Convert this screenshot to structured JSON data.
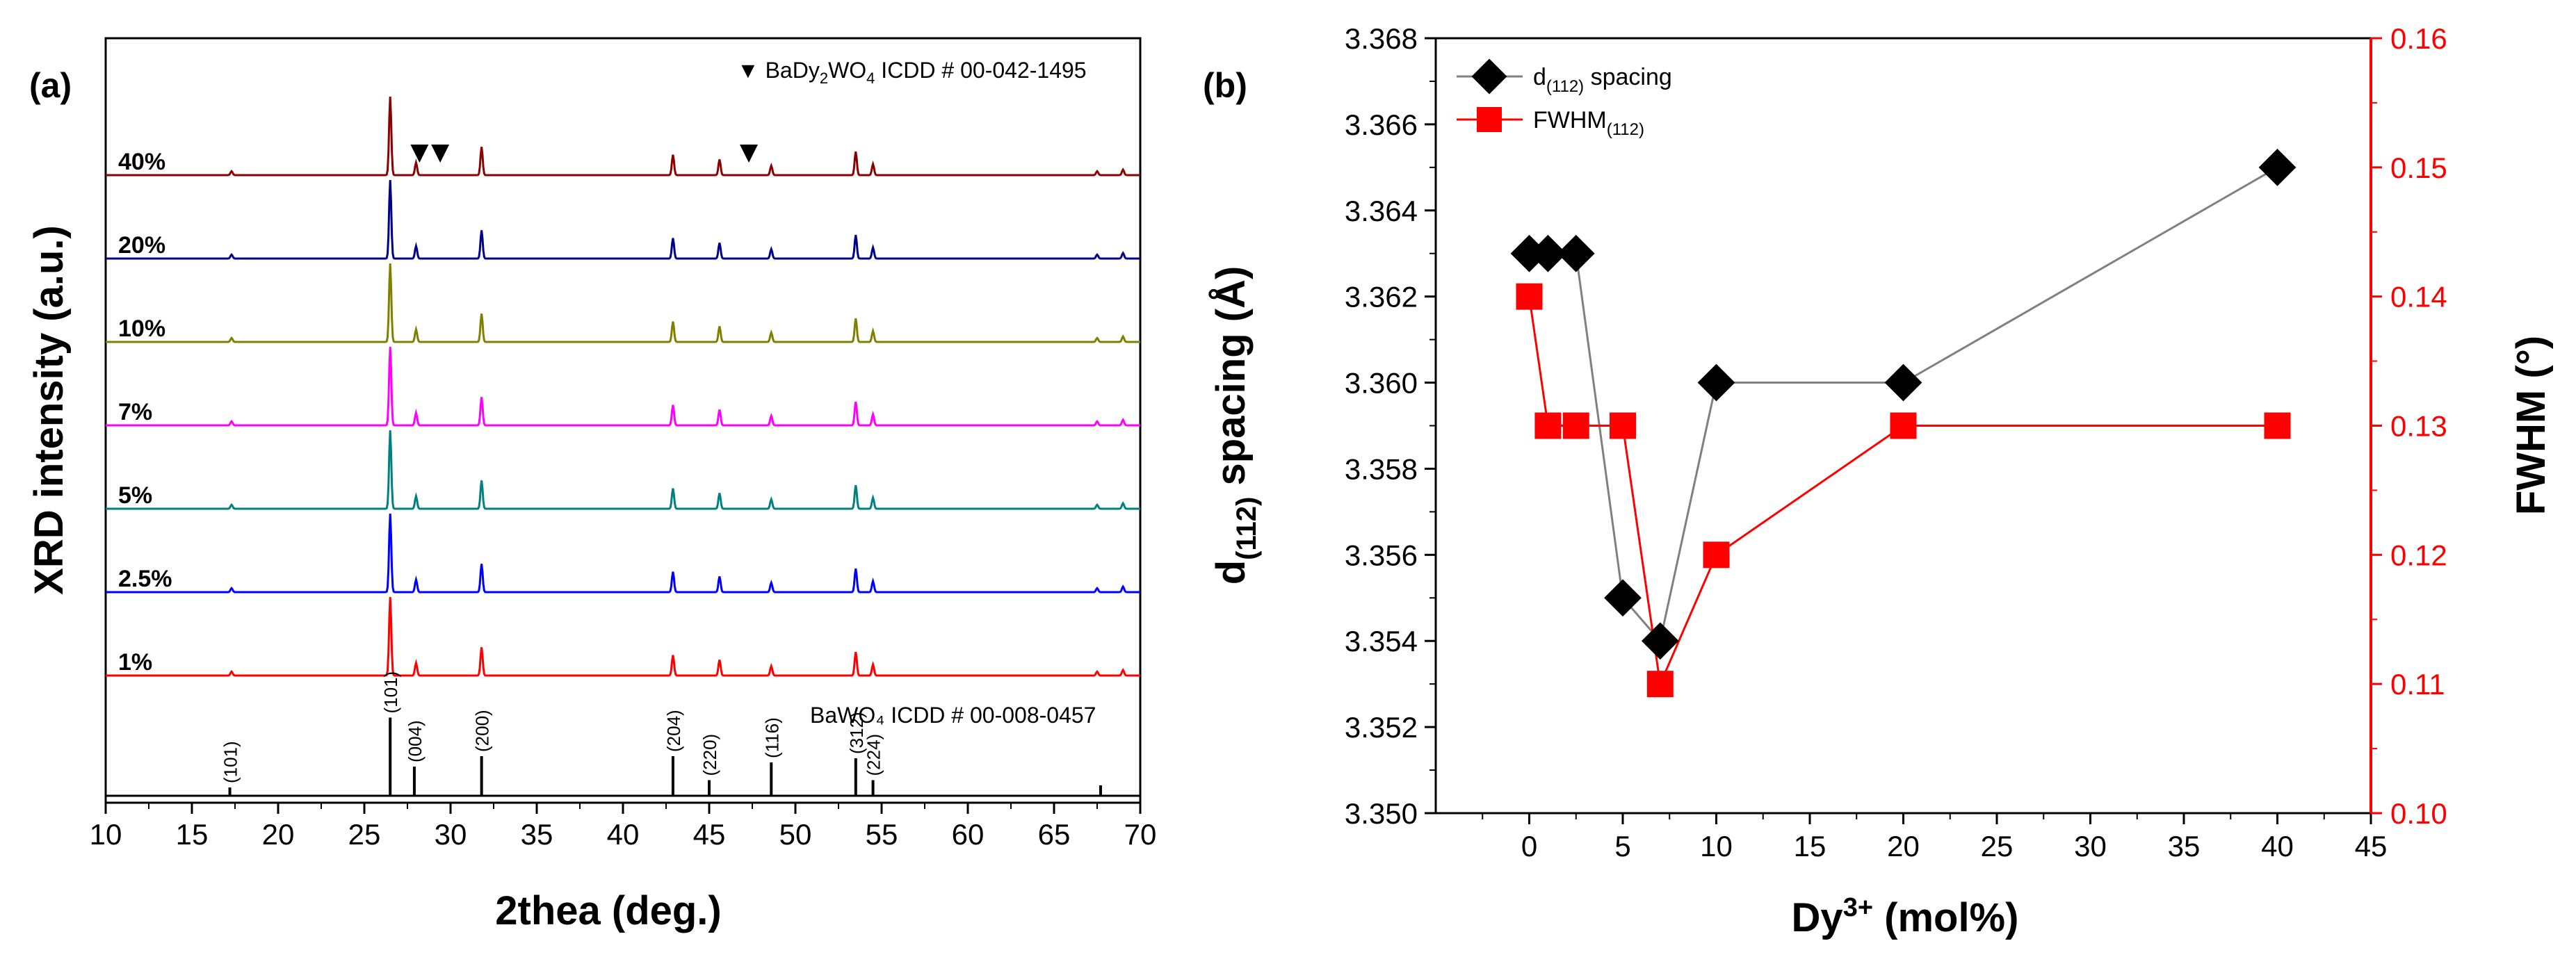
{
  "chart_data": [
    {
      "type": "line",
      "panel": "(a)",
      "title": "",
      "xlabel": "2thea (deg.)",
      "ylabel": "XRD intensity (a.u.)",
      "xlim": [
        10,
        70
      ],
      "xticks": [
        10,
        15,
        20,
        25,
        30,
        35,
        40,
        45,
        50,
        55,
        60,
        65,
        70
      ],
      "marker_legend": {
        "symbol": "▼",
        "pre": "BaDy",
        "sub1": "2",
        "mid": "WO",
        "sub2": "4",
        "post": " ICDD # 00-042-1495"
      },
      "reference_label": "BaWO₄ ICDD # 00-008-0457",
      "secondary_phase_markers": [
        28.2,
        29.4,
        47.3
      ],
      "series": [
        {
          "name": "40%",
          "color": "#8b0000"
        },
        {
          "name": "20%",
          "color": "#00008b"
        },
        {
          "name": "10%",
          "color": "#808000"
        },
        {
          "name": "7%",
          "color": "#ff00ff"
        },
        {
          "name": "5%",
          "color": "#008080"
        },
        {
          "name": "2.5%",
          "color": "#0000ff"
        },
        {
          "name": "1%",
          "color": "#ff0000"
        }
      ],
      "peaks": [
        {
          "x": 17.3,
          "h": 0.05
        },
        {
          "x": 26.5,
          "h": 1.0
        },
        {
          "x": 28.0,
          "h": 0.16
        },
        {
          "x": 31.8,
          "h": 0.36
        },
        {
          "x": 42.9,
          "h": 0.26
        },
        {
          "x": 45.6,
          "h": 0.2
        },
        {
          "x": 48.6,
          "h": 0.12
        },
        {
          "x": 53.5,
          "h": 0.3
        },
        {
          "x": 54.5,
          "h": 0.14
        },
        {
          "x": 67.5,
          "h": 0.05
        },
        {
          "x": 69.0,
          "h": 0.07
        }
      ],
      "reference_lines": [
        {
          "x": 17.2,
          "h": 0.08,
          "label": "(101)"
        },
        {
          "x": 26.5,
          "h": 0.75,
          "label": "(101)"
        },
        {
          "x": 27.9,
          "h": 0.28,
          "label": "(004)"
        },
        {
          "x": 31.8,
          "h": 0.38,
          "label": "(200)"
        },
        {
          "x": 42.9,
          "h": 0.38,
          "label": "(204)"
        },
        {
          "x": 45.0,
          "h": 0.15,
          "label": "(220)"
        },
        {
          "x": 48.6,
          "h": 0.32,
          "label": "(116)"
        },
        {
          "x": 53.5,
          "h": 0.36,
          "label": "(312)"
        },
        {
          "x": 54.5,
          "h": 0.15,
          "label": "(224)"
        },
        {
          "x": 67.7,
          "h": 0.1,
          "label": ""
        }
      ]
    },
    {
      "type": "line",
      "panel": "(b)",
      "title": "",
      "xlabel_pre": "Dy",
      "xlabel_sup": "3+",
      "xlabel_post": " (mol%)",
      "ylabel_pre": "d",
      "ylabel_sub": "(112)",
      "ylabel_post": " spacing (Å)",
      "y2label": "FWHM (°)",
      "xlim": [
        -5,
        45
      ],
      "ylim": [
        3.35,
        3.368
      ],
      "y2lim": [
        0.1,
        0.16
      ],
      "xticks": [
        0,
        5,
        10,
        15,
        20,
        25,
        30,
        35,
        40,
        45
      ],
      "yticks": [
        "3.350",
        "3.352",
        "3.354",
        "3.356",
        "3.358",
        "3.360",
        "3.362",
        "3.364",
        "3.366",
        "3.368"
      ],
      "y2ticks": [
        "0.10",
        "0.11",
        "0.12",
        "0.13",
        "0.14",
        "0.15",
        "0.16"
      ],
      "x": [
        0,
        1,
        2.5,
        5,
        7,
        10,
        20,
        40
      ],
      "series": [
        {
          "name_pre": "d",
          "name_sub": "(112)",
          "name_post": " spacing",
          "marker": "diamond",
          "color": "#000000",
          "line_color": "#808080",
          "axis": "left",
          "values": [
            3.363,
            3.363,
            3.363,
            3.355,
            3.354,
            3.36,
            3.36,
            3.365
          ]
        },
        {
          "name_pre": "FWHM",
          "name_sub": "(112)",
          "name_post": "",
          "marker": "square",
          "color": "#ff0000",
          "line_color": "#ff0000",
          "axis": "right",
          "values": [
            0.14,
            0.13,
            0.13,
            0.13,
            0.11,
            0.12,
            0.13,
            0.13
          ]
        }
      ],
      "accent_color": "#ff0000"
    }
  ]
}
